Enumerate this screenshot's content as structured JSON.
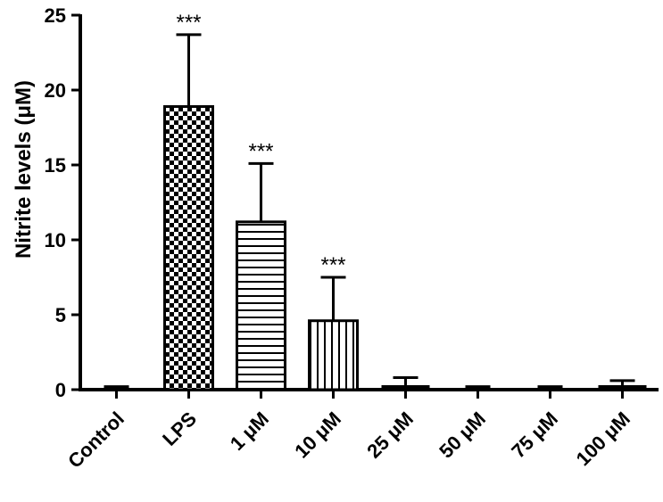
{
  "chart_data": {
    "type": "bar",
    "categories": [
      "Control",
      "LPS",
      "1 μM",
      "10 μM",
      "25 μM",
      "50 μM",
      "75 μM",
      "100 μM"
    ],
    "values": [
      0.1,
      18.9,
      11.2,
      4.6,
      0.3,
      0.1,
      0.1,
      0.3
    ],
    "errors": [
      0.1,
      4.8,
      3.9,
      2.9,
      0.5,
      0.1,
      0.1,
      0.3
    ],
    "significance": [
      "",
      "***",
      "***",
      "***",
      "",
      "",
      "",
      ""
    ],
    "patterns": [
      "none",
      "checker",
      "horizontal",
      "vertical",
      "none",
      "none",
      "none",
      "none"
    ],
    "title": "",
    "xlabel": "",
    "ylabel": "Nitrite levels (μM)",
    "ylim": [
      0,
      25
    ],
    "yticks": [
      0,
      5,
      10,
      15,
      20,
      25
    ],
    "grid": false,
    "bar_color": "#000000",
    "background": "#ffffff"
  }
}
